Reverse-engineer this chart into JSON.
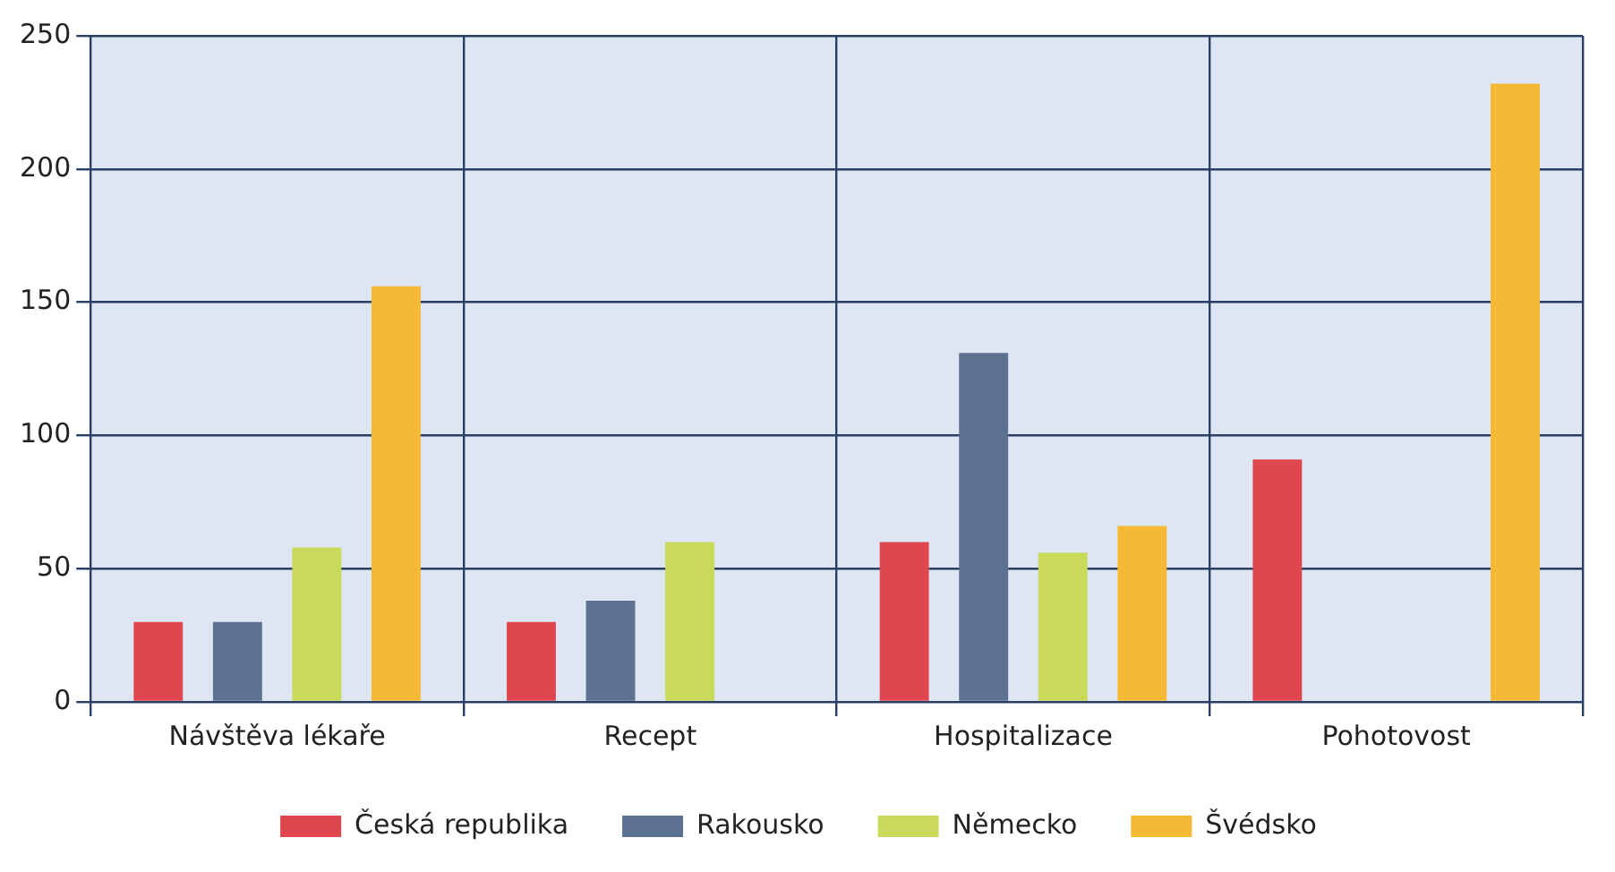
{
  "chart_data": {
    "type": "bar",
    "categories": [
      "Návštěva lékaře",
      "Recept",
      "Hospitalizace",
      "Pohotovost"
    ],
    "series": [
      {
        "name": "Česká republika",
        "color": "#e0464e",
        "values": [
          30,
          30,
          60,
          91
        ]
      },
      {
        "name": "Rakousko",
        "color": "#5d7190",
        "values": [
          30,
          38,
          131,
          null
        ]
      },
      {
        "name": "Německo",
        "color": "#c9d95a",
        "values": [
          58,
          60,
          56,
          null
        ]
      },
      {
        "name": "Švédsko",
        "color": "#f6b935",
        "values": [
          156,
          null,
          66,
          232
        ]
      }
    ],
    "ylim": [
      0,
      250
    ],
    "yticks": [
      0,
      50,
      100,
      150,
      200,
      250
    ],
    "grid": true,
    "legend": "bottom"
  }
}
